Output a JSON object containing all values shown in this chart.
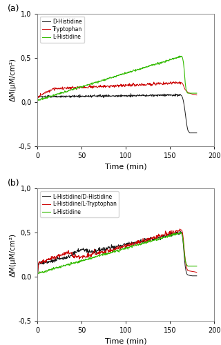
{
  "panel_a": {
    "title": "(a)",
    "xlabel": "Time (min)",
    "ylabel": "ΔM(μM/cm²)",
    "xlim": [
      0,
      200
    ],
    "ylim": [
      -0.5,
      1.0
    ],
    "yticks": [
      -0.5,
      0.0,
      0.5,
      1.0
    ],
    "ytick_labels": [
      "-0,5",
      "0,0",
      "0,5",
      "1,0"
    ],
    "xticks": [
      0,
      50,
      100,
      150,
      200
    ],
    "legend": [
      "D-Histidine",
      "Tryptophan",
      "L-Histidine"
    ],
    "colors": [
      "#1a1a1a",
      "#cc0000",
      "#33bb00"
    ]
  },
  "panel_b": {
    "title": "(b)",
    "xlabel": "Time (min)",
    "ylabel": "ΔM(μM/cm²)",
    "xlim": [
      0,
      200
    ],
    "ylim": [
      -0.5,
      1.0
    ],
    "yticks": [
      -0.5,
      0.0,
      0.5,
      1.0
    ],
    "ytick_labels": [
      "-0,5",
      "0,0",
      "0,5",
      "1,0"
    ],
    "xticks": [
      0,
      50,
      100,
      150,
      200
    ],
    "legend": [
      "L-Histidine/D-Histidine",
      "L-Histidine/L-Tryptophan",
      "L-Histidine"
    ],
    "colors": [
      "#1a1a1a",
      "#cc0000",
      "#33bb00"
    ]
  }
}
